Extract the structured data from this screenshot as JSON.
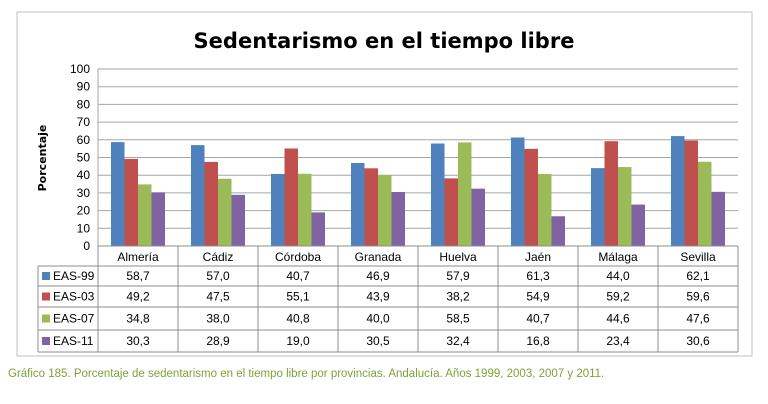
{
  "chart_data": {
    "type": "bar",
    "title": "Sedentarismo en el tiempo libre",
    "ylabel": "Porcentaje",
    "xlabel": "",
    "ylim": [
      0,
      100
    ],
    "yticks": [
      0,
      10,
      20,
      30,
      40,
      50,
      60,
      70,
      80,
      90,
      100
    ],
    "grid": true,
    "legend": "data-table",
    "categories": [
      "Almería",
      "Cádiz",
      "Córdoba",
      "Granada",
      "Huelva",
      "Jaén",
      "Málaga",
      "Sevilla"
    ],
    "series": [
      {
        "name": "EAS-99",
        "color": "#4f81bd",
        "values": [
          58.7,
          57.0,
          40.7,
          46.9,
          57.9,
          61.3,
          44.0,
          62.1
        ],
        "labels": [
          "58,7",
          "57,0",
          "40,7",
          "46,9",
          "57,9",
          "61,3",
          "44,0",
          "62,1"
        ]
      },
      {
        "name": "EAS-03",
        "color": "#c0504d",
        "values": [
          49.2,
          47.5,
          55.1,
          43.9,
          38.2,
          54.9,
          59.2,
          59.6
        ],
        "labels": [
          "49,2",
          "47,5",
          "55,1",
          "43,9",
          "38,2",
          "54,9",
          "59,2",
          "59,6"
        ]
      },
      {
        "name": "EAS-07",
        "color": "#9bbb59",
        "values": [
          34.8,
          38.0,
          40.8,
          40.0,
          58.5,
          40.7,
          44.6,
          47.6
        ],
        "labels": [
          "34,8",
          "38,0",
          "40,8",
          "40,0",
          "58,5",
          "40,7",
          "44,6",
          "47,6"
        ]
      },
      {
        "name": "EAS-11",
        "color": "#8064a2",
        "values": [
          30.3,
          28.9,
          19.0,
          30.5,
          32.4,
          16.8,
          23.4,
          30.6
        ],
        "labels": [
          "30,3",
          "28,9",
          "19,0",
          "30,5",
          "32,4",
          "16,8",
          "23,4",
          "30,6"
        ]
      }
    ]
  },
  "caption": "Gráfico 185. Porcentaje de sedentarismo en el tiempo libre por provincias. Andalucía. Años 1999, 2003, 2007 y 2011."
}
